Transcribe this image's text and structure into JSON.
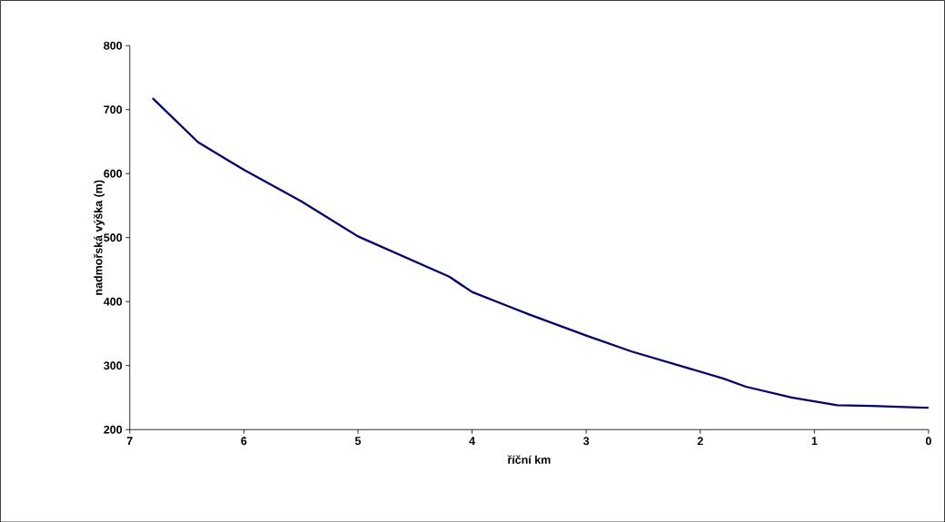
{
  "chart_data": {
    "type": "line",
    "xlabel": "říční km",
    "ylabel": "nadmořská výška (m)",
    "x": [
      6.8,
      6.4,
      6.0,
      5.5,
      5.0,
      4.2,
      4.0,
      3.7,
      3.5,
      3.0,
      2.6,
      1.8,
      1.6,
      1.2,
      1.0,
      0.8,
      0.5,
      0.0
    ],
    "series": [
      {
        "color": "#000080",
        "values": [
          718,
          649,
          606,
          557,
          502,
          439,
          415,
          394,
          380,
          347,
          322,
          280,
          267,
          250,
          244,
          238,
          237,
          234
        ]
      }
    ],
    "xlim": [
      7,
      0
    ],
    "ylim": [
      200,
      800
    ],
    "xticks": [
      7,
      6,
      5,
      4,
      3,
      2,
      1,
      0
    ],
    "yticks": [
      200,
      300,
      400,
      500,
      600,
      700,
      800
    ],
    "grid": false,
    "marker": "none",
    "line_style": "solid"
  }
}
